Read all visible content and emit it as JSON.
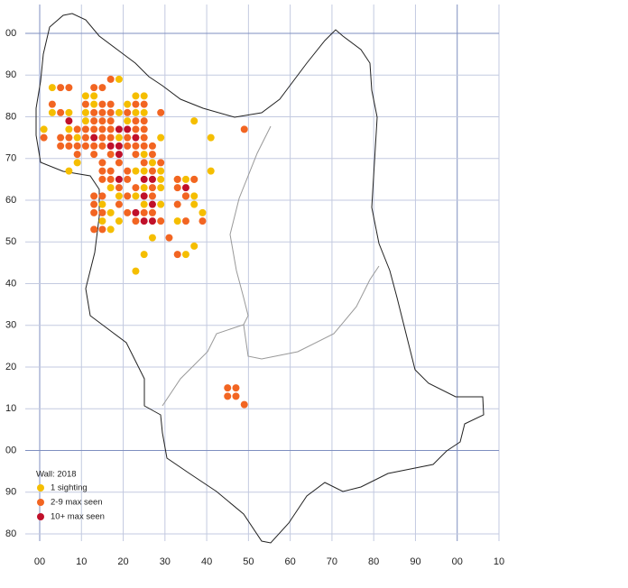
{
  "chart_data": {
    "type": "scatter",
    "legend_title": "Wall:  2018",
    "xlim": [
      0,
      110
    ],
    "ylim": [
      -20,
      100
    ],
    "xticks": [
      {
        "value": 0,
        "label": "00"
      },
      10,
      20,
      30,
      40,
      50,
      60,
      70,
      80,
      90,
      {
        "value": 100,
        "label": "00"
      },
      {
        "value": 110,
        "label": "10"
      }
    ],
    "yticks": [
      {
        "value": 100,
        "label": "00"
      },
      90,
      80,
      70,
      60,
      50,
      40,
      30,
      20,
      10,
      {
        "value": 0,
        "label": "00"
      },
      {
        "value": -10,
        "label": "90"
      },
      {
        "value": -20,
        "label": "80"
      }
    ],
    "grid": true,
    "series": [
      {
        "name": "1 sighting",
        "color": "#f5be00",
        "x": [
          19,
          3,
          11,
          13,
          23,
          25,
          13,
          21,
          3,
          7,
          11,
          19,
          23,
          25,
          11,
          21,
          37,
          1,
          7,
          9,
          19,
          29,
          41,
          25,
          9,
          27,
          7,
          23,
          25,
          29,
          41,
          29,
          33,
          35,
          37,
          17,
          25,
          29,
          19,
          23,
          37,
          15,
          25,
          29,
          37,
          17,
          39,
          15,
          19,
          33,
          17,
          27,
          37,
          25,
          35,
          23
        ],
        "values": [
          89,
          87,
          85,
          85,
          85,
          85,
          83,
          83,
          81,
          81,
          81,
          81,
          81,
          81,
          79,
          79,
          79,
          77,
          77,
          75,
          75,
          75,
          75,
          71,
          69,
          69,
          67,
          67,
          67,
          67,
          67,
          65,
          65,
          65,
          65,
          63,
          63,
          63,
          61,
          61,
          61,
          59,
          59,
          59,
          59,
          57,
          57,
          55,
          55,
          55,
          53,
          51,
          49,
          47,
          47,
          43
        ]
      },
      {
        "name": "2-9 max seen",
        "color": "#f26522",
        "x": [
          17,
          5,
          7,
          13,
          15,
          3,
          11,
          15,
          17,
          23,
          25,
          5,
          13,
          15,
          17,
          21,
          29,
          13,
          15,
          17,
          23,
          25,
          9,
          11,
          13,
          15,
          17,
          23,
          25,
          49,
          1,
          5,
          7,
          11,
          15,
          17,
          21,
          25,
          5,
          7,
          9,
          11,
          13,
          15,
          21,
          23,
          25,
          27,
          9,
          13,
          17,
          23,
          27,
          15,
          19,
          25,
          29,
          15,
          17,
          21,
          27,
          33,
          35,
          37,
          15,
          17,
          21,
          19,
          23,
          27,
          33,
          13,
          15,
          21,
          27,
          35,
          13,
          19,
          33,
          13,
          15,
          21,
          25,
          27,
          23,
          29,
          35,
          39,
          13,
          15,
          31,
          33,
          45,
          47,
          45,
          47,
          49
        ],
        "values": [
          89,
          87,
          87,
          87,
          87,
          83,
          83,
          83,
          83,
          83,
          83,
          81,
          81,
          81,
          81,
          81,
          81,
          79,
          79,
          79,
          79,
          79,
          77,
          77,
          77,
          77,
          77,
          77,
          77,
          77,
          75,
          75,
          75,
          75,
          75,
          75,
          75,
          75,
          73,
          73,
          73,
          73,
          73,
          73,
          73,
          73,
          73,
          73,
          71,
          71,
          71,
          71,
          71,
          69,
          69,
          69,
          69,
          67,
          67,
          67,
          67,
          65,
          61,
          65,
          65,
          65,
          65,
          63,
          63,
          63,
          63,
          61,
          61,
          61,
          61,
          61,
          59,
          59,
          59,
          57,
          57,
          57,
          57,
          57,
          55,
          55,
          55,
          55,
          53,
          53,
          51,
          47,
          15,
          15,
          13,
          13,
          11
        ]
      },
      {
        "name": "10+ max seen",
        "color": "#c0102a",
        "x": [
          7,
          19,
          21,
          13,
          23,
          17,
          19,
          19,
          19,
          25,
          27,
          35,
          25,
          27,
          23,
          25,
          27
        ],
        "values": [
          79,
          77,
          77,
          75,
          75,
          73,
          73,
          71,
          65,
          65,
          65,
          63,
          61,
          59,
          57,
          55,
          55
        ]
      }
    ]
  }
}
